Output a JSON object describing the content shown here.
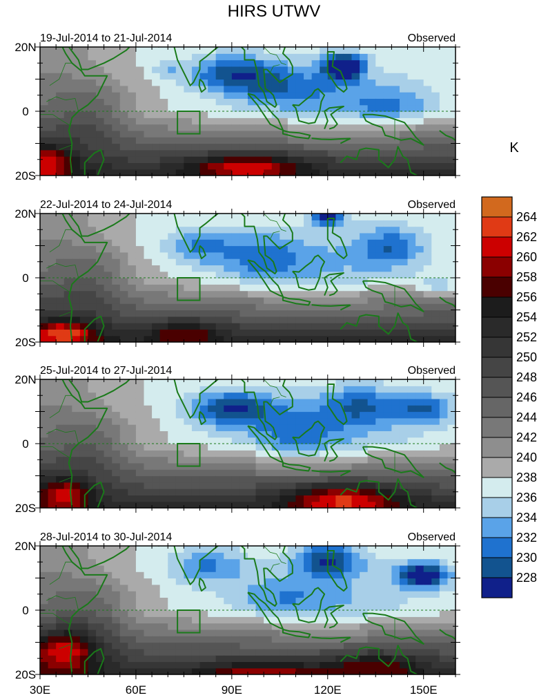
{
  "title": "HIRS UTWV",
  "unit": "K",
  "panels": [
    {
      "date_label": "19-Jul-2014 to 21-Jul-2014",
      "source_label": "Observed"
    },
    {
      "date_label": "22-Jul-2014 to 24-Jul-2014",
      "source_label": "Observed"
    },
    {
      "date_label": "25-Jul-2014 to 27-Jul-2014",
      "source_label": "Observed"
    },
    {
      "date_label": "28-Jul-2014 to 30-Jul-2014",
      "source_label": "Observed"
    }
  ],
  "lat_ticks": [
    "20N",
    "0",
    "20S"
  ],
  "lon_ticks": [
    "30E",
    "60E",
    "90E",
    "120E",
    "150E"
  ],
  "colorbar": {
    "labels": [
      "264",
      "262",
      "260",
      "258",
      "256",
      "254",
      "252",
      "250",
      "248",
      "246",
      "244",
      "242",
      "240",
      "238",
      "236",
      "234",
      "232",
      "230",
      "228"
    ],
    "colors": [
      "#d2691e",
      "#e03a15",
      "#cc0000",
      "#8b0000",
      "#4a0000",
      "#1c1c1c",
      "#2a2a2a",
      "#363636",
      "#454545",
      "#555555",
      "#666666",
      "#787878",
      "#8e8e8e",
      "#aaaaaa",
      "#d4ecee",
      "#a8cfe8",
      "#5aa3e8",
      "#1f72cf",
      "#12538f",
      "#10208a"
    ]
  },
  "chart_data": {
    "type": "heatmap",
    "title": "HIRS UTWV",
    "variable_unit": "K",
    "lon_range": [
      30,
      160
    ],
    "lat_range": [
      -20,
      20
    ],
    "levels": [
      228,
      230,
      232,
      234,
      236,
      238,
      240,
      242,
      244,
      246,
      248,
      250,
      252,
      254,
      256,
      258,
      260,
      262,
      264
    ],
    "box_region_lon": [
      73,
      80
    ],
    "box_region_lat": [
      -7,
      0
    ]
  }
}
